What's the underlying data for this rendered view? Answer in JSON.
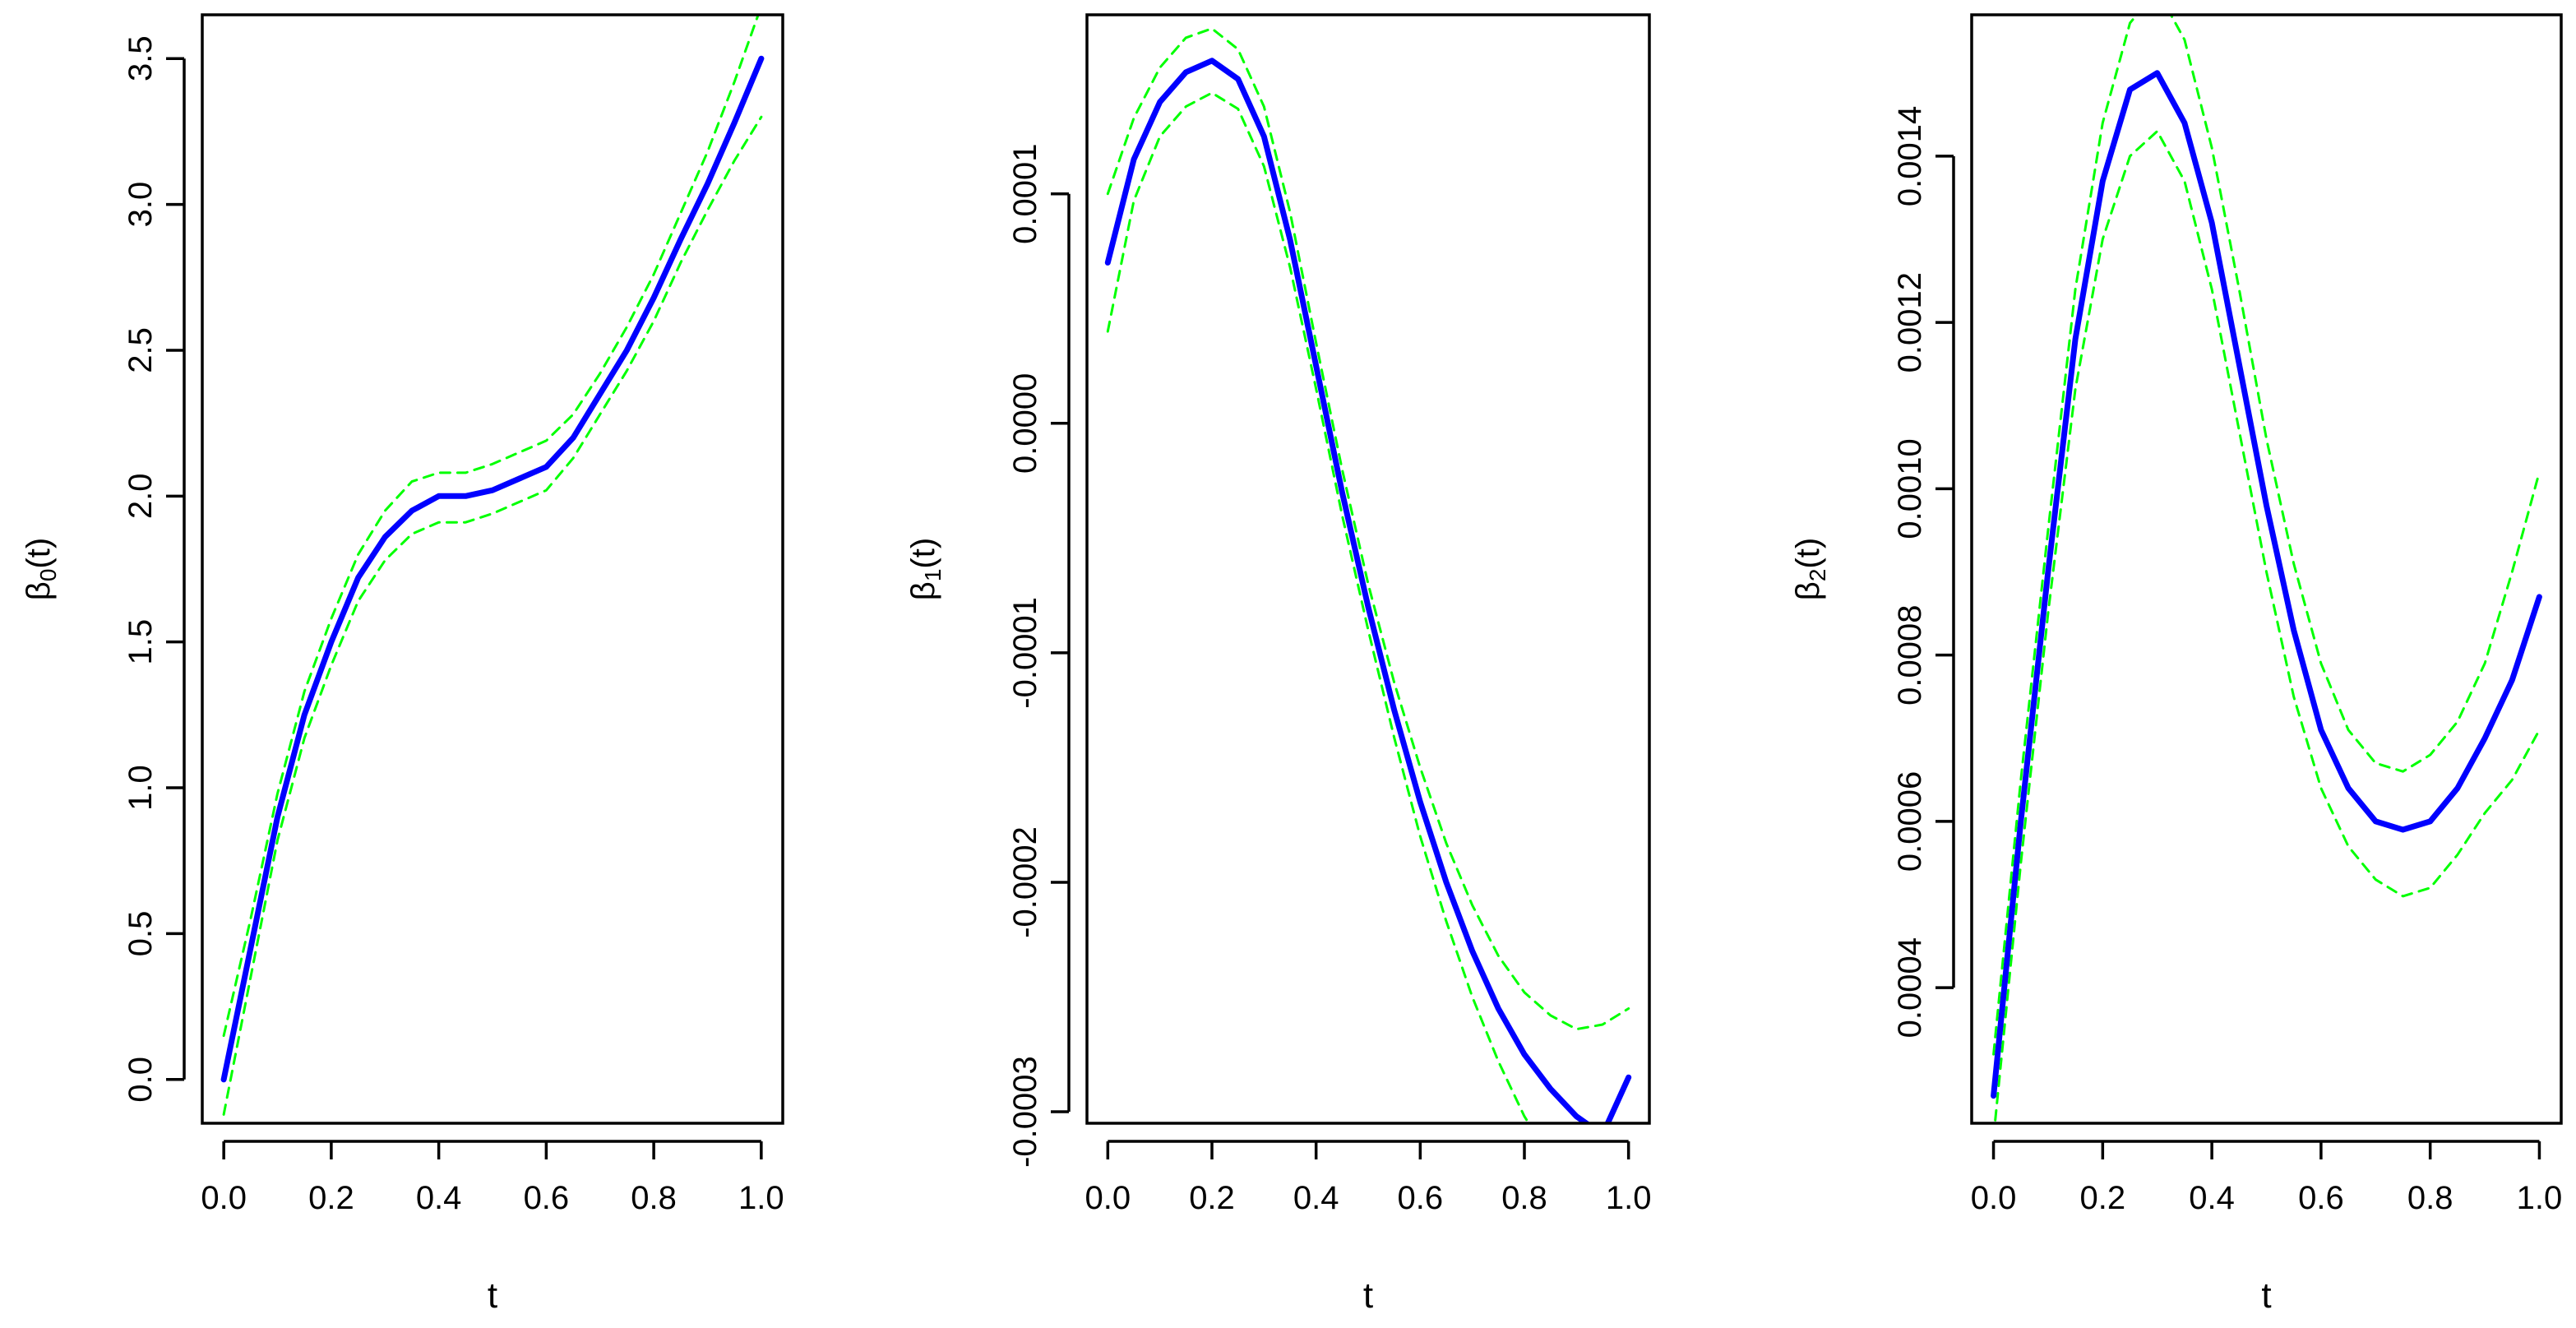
{
  "chart_data": [
    {
      "type": "line",
      "xlabel": "t",
      "ylabel": "β0(t)",
      "ylabel_parts": {
        "base": "β",
        "sub": "0",
        "rest": "(t)"
      },
      "xlim": [
        -0.04,
        1.04
      ],
      "ylim": [
        -0.15,
        3.65
      ],
      "xticks": [
        "0.0",
        "0.2",
        "0.4",
        "0.6",
        "0.8",
        "1.0"
      ],
      "xtick_values": [
        0,
        0.2,
        0.4,
        0.6,
        0.8,
        1.0
      ],
      "yticks": [
        "0.0",
        "0.5",
        "1.0",
        "1.5",
        "2.0",
        "2.5",
        "3.0",
        "3.5"
      ],
      "ytick_values": [
        0,
        0.5,
        1.0,
        1.5,
        2.0,
        2.5,
        3.0,
        3.5
      ],
      "x": [
        0,
        0.05,
        0.1,
        0.15,
        0.2,
        0.25,
        0.3,
        0.35,
        0.4,
        0.45,
        0.5,
        0.55,
        0.6,
        0.65,
        0.7,
        0.75,
        0.8,
        0.85,
        0.9,
        0.95,
        1.0
      ],
      "series": [
        {
          "role": "estimate",
          "color": "#0000ff",
          "dashed": false,
          "values": [
            0.0,
            0.45,
            0.9,
            1.25,
            1.5,
            1.72,
            1.86,
            1.95,
            2.0,
            2.0,
            2.02,
            2.06,
            2.1,
            2.2,
            2.35,
            2.5,
            2.68,
            2.88,
            3.07,
            3.28,
            3.5
          ]
        },
        {
          "role": "upper",
          "color": "#00ff00",
          "dashed": true,
          "values": [
            0.15,
            0.55,
            0.98,
            1.33,
            1.58,
            1.8,
            1.95,
            2.05,
            2.08,
            2.08,
            2.11,
            2.15,
            2.19,
            2.28,
            2.42,
            2.58,
            2.76,
            2.97,
            3.18,
            3.42,
            3.68
          ]
        },
        {
          "role": "lower",
          "color": "#00ff00",
          "dashed": true,
          "values": [
            -0.12,
            0.35,
            0.82,
            1.17,
            1.42,
            1.64,
            1.78,
            1.87,
            1.91,
            1.91,
            1.94,
            1.98,
            2.02,
            2.13,
            2.28,
            2.43,
            2.6,
            2.8,
            2.98,
            3.15,
            3.3
          ]
        }
      ]
    },
    {
      "type": "line",
      "xlabel": "t",
      "ylabel": "β1(t)",
      "ylabel_parts": {
        "base": "β",
        "sub": "1",
        "rest": "(t)"
      },
      "xlim": [
        -0.04,
        1.04
      ],
      "ylim": [
        -0.000305,
        0.000178
      ],
      "xticks": [
        "0.0",
        "0.2",
        "0.4",
        "0.6",
        "0.8",
        "1.0"
      ],
      "xtick_values": [
        0,
        0.2,
        0.4,
        0.6,
        0.8,
        1.0
      ],
      "yticks": [
        "-0.0003",
        "-0.0002",
        "-0.0001",
        "0.0000",
        "0.0001"
      ],
      "ytick_values": [
        -0.0003,
        -0.0002,
        -0.0001,
        0.0,
        0.0001
      ],
      "x": [
        0,
        0.05,
        0.1,
        0.15,
        0.2,
        0.25,
        0.3,
        0.35,
        0.4,
        0.45,
        0.5,
        0.55,
        0.6,
        0.65,
        0.7,
        0.75,
        0.8,
        0.85,
        0.9,
        0.95,
        1.0
      ],
      "series": [
        {
          "role": "estimate",
          "color": "#0000ff",
          "dashed": false,
          "values": [
            7e-05,
            0.000115,
            0.00014,
            0.000153,
            0.000158,
            0.00015,
            0.000125,
            8e-05,
            2.5e-05,
            -3e-05,
            -8e-05,
            -0.000125,
            -0.000165,
            -0.0002,
            -0.00023,
            -0.000255,
            -0.000275,
            -0.00029,
            -0.000302,
            -0.00031,
            -0.000285
          ]
        },
        {
          "role": "upper",
          "color": "#00ff00",
          "dashed": true,
          "values": [
            0.0001,
            0.000133,
            0.000155,
            0.000168,
            0.000172,
            0.000163,
            0.000138,
            9.2e-05,
            3.5e-05,
            -2e-05,
            -7e-05,
            -0.000113,
            -0.00015,
            -0.000183,
            -0.00021,
            -0.000232,
            -0.000248,
            -0.000258,
            -0.000264,
            -0.000262,
            -0.000255
          ]
        },
        {
          "role": "lower",
          "color": "#00ff00",
          "dashed": true,
          "values": [
            4e-05,
            9.7e-05,
            0.000125,
            0.000138,
            0.000144,
            0.000137,
            0.000112,
            6.8e-05,
            1.5e-05,
            -4e-05,
            -9e-05,
            -0.000137,
            -0.00018,
            -0.000217,
            -0.00025,
            -0.000278,
            -0.000302,
            -0.00032,
            -0.00034,
            -0.000358,
            -0.00031
          ]
        }
      ]
    },
    {
      "type": "line",
      "xlabel": "t",
      "ylabel": "β2(t)",
      "ylabel_parts": {
        "base": "β",
        "sub": "2",
        "rest": "(t)"
      },
      "xlim": [
        -0.04,
        1.04
      ],
      "ylim": [
        0.000237,
        0.00157
      ],
      "xticks": [
        "0.0",
        "0.2",
        "0.4",
        "0.6",
        "0.8",
        "1.0"
      ],
      "xtick_values": [
        0,
        0.2,
        0.4,
        0.6,
        0.8,
        1.0
      ],
      "yticks": [
        "0.0004",
        "0.0006",
        "0.0008",
        "0.0010",
        "0.0012",
        "0.0014"
      ],
      "ytick_values": [
        0.0004,
        0.0006,
        0.0008,
        0.001,
        0.0012,
        0.0014
      ],
      "x": [
        0,
        0.05,
        0.1,
        0.15,
        0.2,
        0.25,
        0.3,
        0.35,
        0.4,
        0.45,
        0.5,
        0.55,
        0.6,
        0.65,
        0.7,
        0.75,
        0.8,
        0.85,
        0.9,
        0.95,
        1.0
      ],
      "series": [
        {
          "role": "estimate",
          "color": "#0000ff",
          "dashed": false,
          "values": [
            0.00027,
            0.0006,
            0.0009,
            0.00118,
            0.00137,
            0.00148,
            0.0015,
            0.00144,
            0.00132,
            0.00115,
            0.00098,
            0.00083,
            0.00071,
            0.00064,
            0.0006,
            0.00059,
            0.0006,
            0.00064,
            0.0007,
            0.00077,
            0.00087
          ]
        },
        {
          "role": "upper",
          "color": "#00ff00",
          "dashed": true,
          "values": [
            0.00032,
            0.00065,
            0.00095,
            0.00124,
            0.00144,
            0.00156,
            0.0016,
            0.00154,
            0.00141,
            0.00124,
            0.00106,
            0.00091,
            0.00079,
            0.00071,
            0.00067,
            0.00066,
            0.00068,
            0.00072,
            0.00079,
            0.0009,
            0.00102
          ]
        },
        {
          "role": "lower",
          "color": "#00ff00",
          "dashed": true,
          "values": [
            0.00022,
            0.00055,
            0.00085,
            0.00112,
            0.0013,
            0.0014,
            0.00143,
            0.00137,
            0.00124,
            0.00107,
            0.0009,
            0.00075,
            0.00064,
            0.00057,
            0.00053,
            0.00051,
            0.00052,
            0.00056,
            0.00061,
            0.00065,
            0.00071
          ]
        }
      ]
    }
  ]
}
